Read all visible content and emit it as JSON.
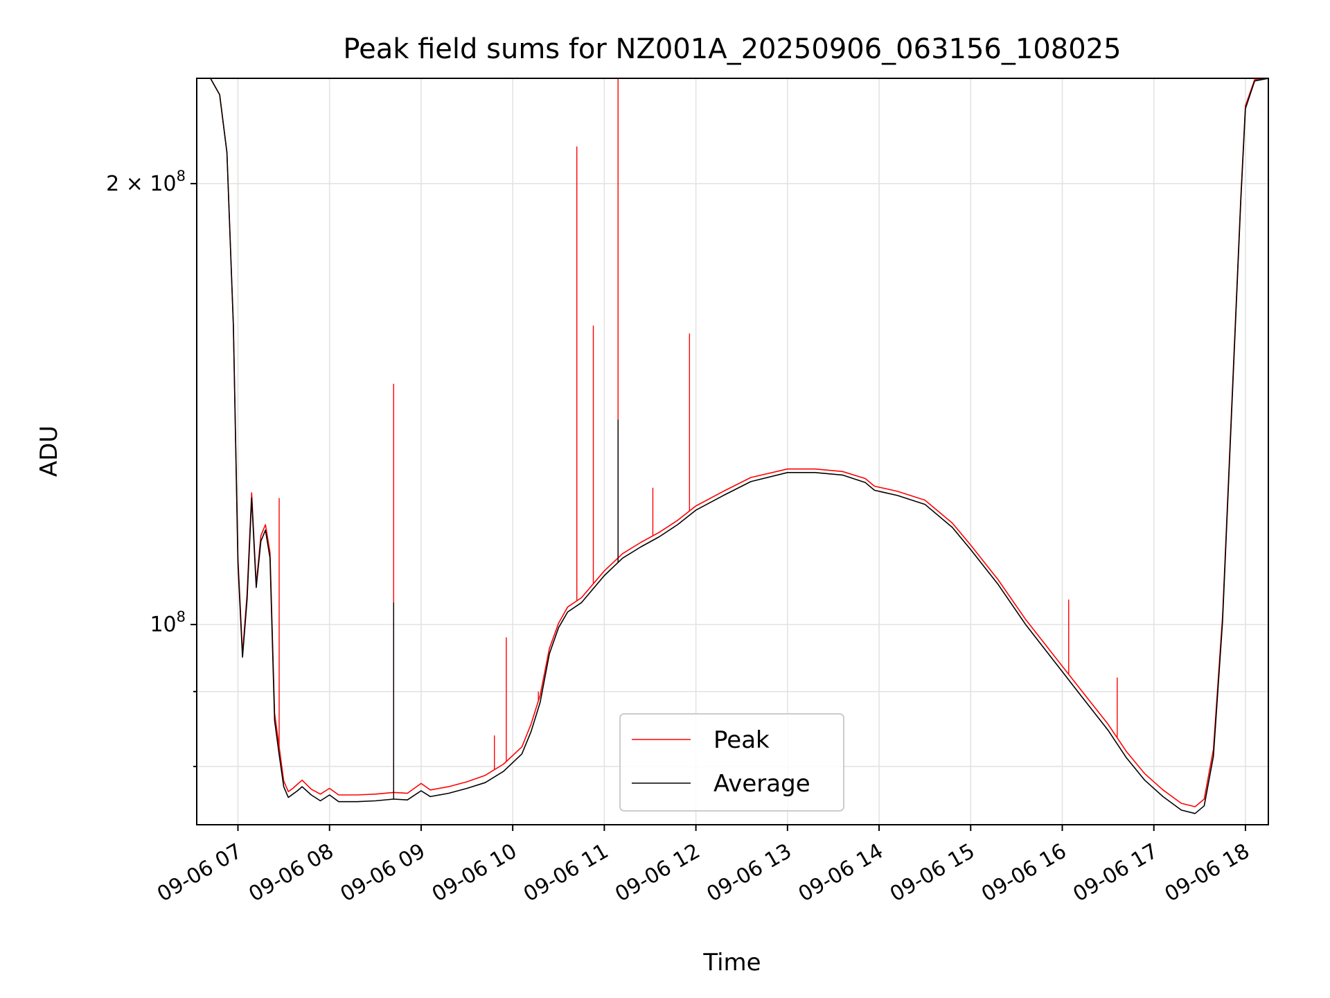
{
  "chart_data": {
    "type": "line",
    "title": "Peak field sums for NZ001A_20250906_063156_108025",
    "xlabel": "Time",
    "ylabel": "ADU",
    "x_unit": "hours",
    "xlim": [
      6.55,
      18.25
    ],
    "ylim": [
      73000000,
      236000000
    ],
    "yscale": "log",
    "grid": true,
    "legend": {
      "position": "lower-center",
      "entries": [
        "Peak",
        "Average"
      ]
    },
    "x_ticks": [
      {
        "value": 7,
        "label": "09-06 07"
      },
      {
        "value": 8,
        "label": "09-06 08"
      },
      {
        "value": 9,
        "label": "09-06 09"
      },
      {
        "value": 10,
        "label": "09-06 10"
      },
      {
        "value": 11,
        "label": "09-06 11"
      },
      {
        "value": 12,
        "label": "09-06 12"
      },
      {
        "value": 13,
        "label": "09-06 13"
      },
      {
        "value": 14,
        "label": "09-06 14"
      },
      {
        "value": 15,
        "label": "09-06 15"
      },
      {
        "value": 16,
        "label": "09-06 16"
      },
      {
        "value": 17,
        "label": "09-06 17"
      },
      {
        "value": 18,
        "label": "09-06 18"
      }
    ],
    "y_major_ticks": [
      {
        "value": 100000000,
        "base": "10",
        "exp": "8"
      },
      {
        "value": 200000000,
        "base": "2 × 10",
        "exp": "8"
      }
    ],
    "y_minor_ticks": [
      80000000,
      90000000
    ],
    "series": [
      {
        "name": "Average",
        "color": "#000000",
        "x": [
          6.55,
          6.7,
          6.8,
          6.88,
          6.95,
          7.0,
          7.05,
          7.1,
          7.15,
          7.2,
          7.25,
          7.3,
          7.35,
          7.4,
          7.45,
          7.5,
          7.55,
          7.6,
          7.65,
          7.7,
          7.8,
          7.9,
          8.0,
          8.1,
          8.3,
          8.5,
          8.7,
          8.85,
          9.0,
          9.1,
          9.3,
          9.5,
          9.7,
          9.9,
          10.1,
          10.2,
          10.3,
          10.4,
          10.5,
          10.6,
          10.75,
          11.0,
          11.2,
          11.4,
          11.6,
          11.8,
          12.0,
          12.3,
          12.6,
          13.0,
          13.3,
          13.6,
          13.85,
          13.95,
          14.2,
          14.5,
          14.8,
          15.0,
          15.3,
          15.6,
          15.9,
          16.2,
          16.5,
          16.7,
          16.9,
          17.1,
          17.3,
          17.45,
          17.55,
          17.65,
          17.75,
          17.85,
          17.95,
          18.0,
          18.1,
          18.25
        ],
        "y": [
          236000000,
          236000000,
          230000000,
          210000000,
          160000000,
          110000000,
          95000000,
          104000000,
          122000000,
          106000000,
          114000000,
          116000000,
          111000000,
          86000000,
          81500000,
          77500000,
          76200000,
          76600000,
          77000000,
          77500000,
          76500000,
          75800000,
          76500000,
          75700000,
          75700000,
          75800000,
          76000000,
          75900000,
          77000000,
          76300000,
          76700000,
          77300000,
          78000000,
          79400000,
          81600000,
          84500000,
          88500000,
          95500000,
          99500000,
          102000000,
          103500000,
          108000000,
          111000000,
          113000000,
          114800000,
          117000000,
          119700000,
          122500000,
          125200000,
          127000000,
          127000000,
          126500000,
          125000000,
          123500000,
          122500000,
          120800000,
          116500000,
          112500000,
          106500000,
          100000000,
          94600000,
          89500000,
          84700000,
          81100000,
          78300000,
          76300000,
          74700000,
          74300000,
          75200000,
          81300000,
          100500000,
          140000000,
          195000000,
          225000000,
          235000000,
          236000000
        ]
      },
      {
        "name": "Peak",
        "color": "#ff0000",
        "x": [
          6.55,
          6.7,
          6.8,
          6.88,
          6.95,
          7.0,
          7.05,
          7.1,
          7.15,
          7.2,
          7.25,
          7.3,
          7.35,
          7.4,
          7.45,
          7.5,
          7.55,
          7.6,
          7.65,
          7.7,
          7.8,
          7.9,
          8.0,
          8.1,
          8.3,
          8.5,
          8.7,
          8.85,
          9.0,
          9.1,
          9.3,
          9.5,
          9.7,
          9.9,
          10.1,
          10.2,
          10.3,
          10.4,
          10.5,
          10.6,
          10.75,
          11.0,
          11.2,
          11.4,
          11.6,
          11.8,
          12.0,
          12.3,
          12.6,
          13.0,
          13.3,
          13.6,
          13.85,
          13.95,
          14.2,
          14.5,
          14.8,
          15.0,
          15.3,
          15.6,
          15.9,
          16.2,
          16.5,
          16.7,
          16.9,
          17.1,
          17.3,
          17.45,
          17.55,
          17.65,
          17.75,
          17.85,
          17.95,
          18.0,
          18.1,
          18.25
        ],
        "y": [
          236000000,
          236000000,
          230000000,
          210000000,
          160000000,
          111000000,
          95500000,
          105000000,
          123000000,
          106500000,
          115000000,
          117000000,
          112000000,
          87000000,
          82500000,
          78200000,
          76900000,
          77300000,
          77800000,
          78300000,
          77200000,
          76600000,
          77300000,
          76500000,
          76500000,
          76600000,
          76800000,
          76700000,
          77900000,
          77100000,
          77500000,
          78100000,
          78900000,
          80300000,
          82500000,
          85500000,
          89500000,
          96300000,
          100200000,
          102800000,
          104300000,
          108800000,
          111800000,
          113800000,
          115600000,
          117800000,
          120500000,
          123300000,
          126000000,
          127700000,
          127700000,
          127200000,
          125800000,
          124300000,
          123300000,
          121600000,
          117300000,
          113300000,
          107300000,
          100800000,
          95400000,
          90300000,
          85500000,
          81900000,
          79100000,
          77100000,
          75500000,
          75100000,
          76000000,
          82200000,
          101300000,
          141000000,
          196000000,
          226000000,
          235500000,
          236000000
        ]
      }
    ],
    "spikes": [
      {
        "series": "Peak",
        "x": 7.45,
        "y": 122000000
      },
      {
        "series": "Peak",
        "x": 8.7,
        "y": 146000000
      },
      {
        "series": "Average",
        "x": 8.7,
        "y": 103500000
      },
      {
        "series": "Peak",
        "x": 9.8,
        "y": 84000000
      },
      {
        "series": "Peak",
        "x": 9.93,
        "y": 98000000
      },
      {
        "series": "Peak",
        "x": 10.28,
        "y": 90000000
      },
      {
        "series": "Peak",
        "x": 10.7,
        "y": 212000000
      },
      {
        "series": "Peak",
        "x": 10.88,
        "y": 160000000
      },
      {
        "series": "Peak",
        "x": 11.15,
        "y": 236000000
      },
      {
        "series": "Average",
        "x": 11.15,
        "y": 138000000
      },
      {
        "series": "Peak",
        "x": 11.53,
        "y": 124000000
      },
      {
        "series": "Peak",
        "x": 11.93,
        "y": 158000000
      },
      {
        "series": "Peak",
        "x": 16.07,
        "y": 104000000
      },
      {
        "series": "Peak",
        "x": 16.6,
        "y": 92000000
      }
    ]
  }
}
